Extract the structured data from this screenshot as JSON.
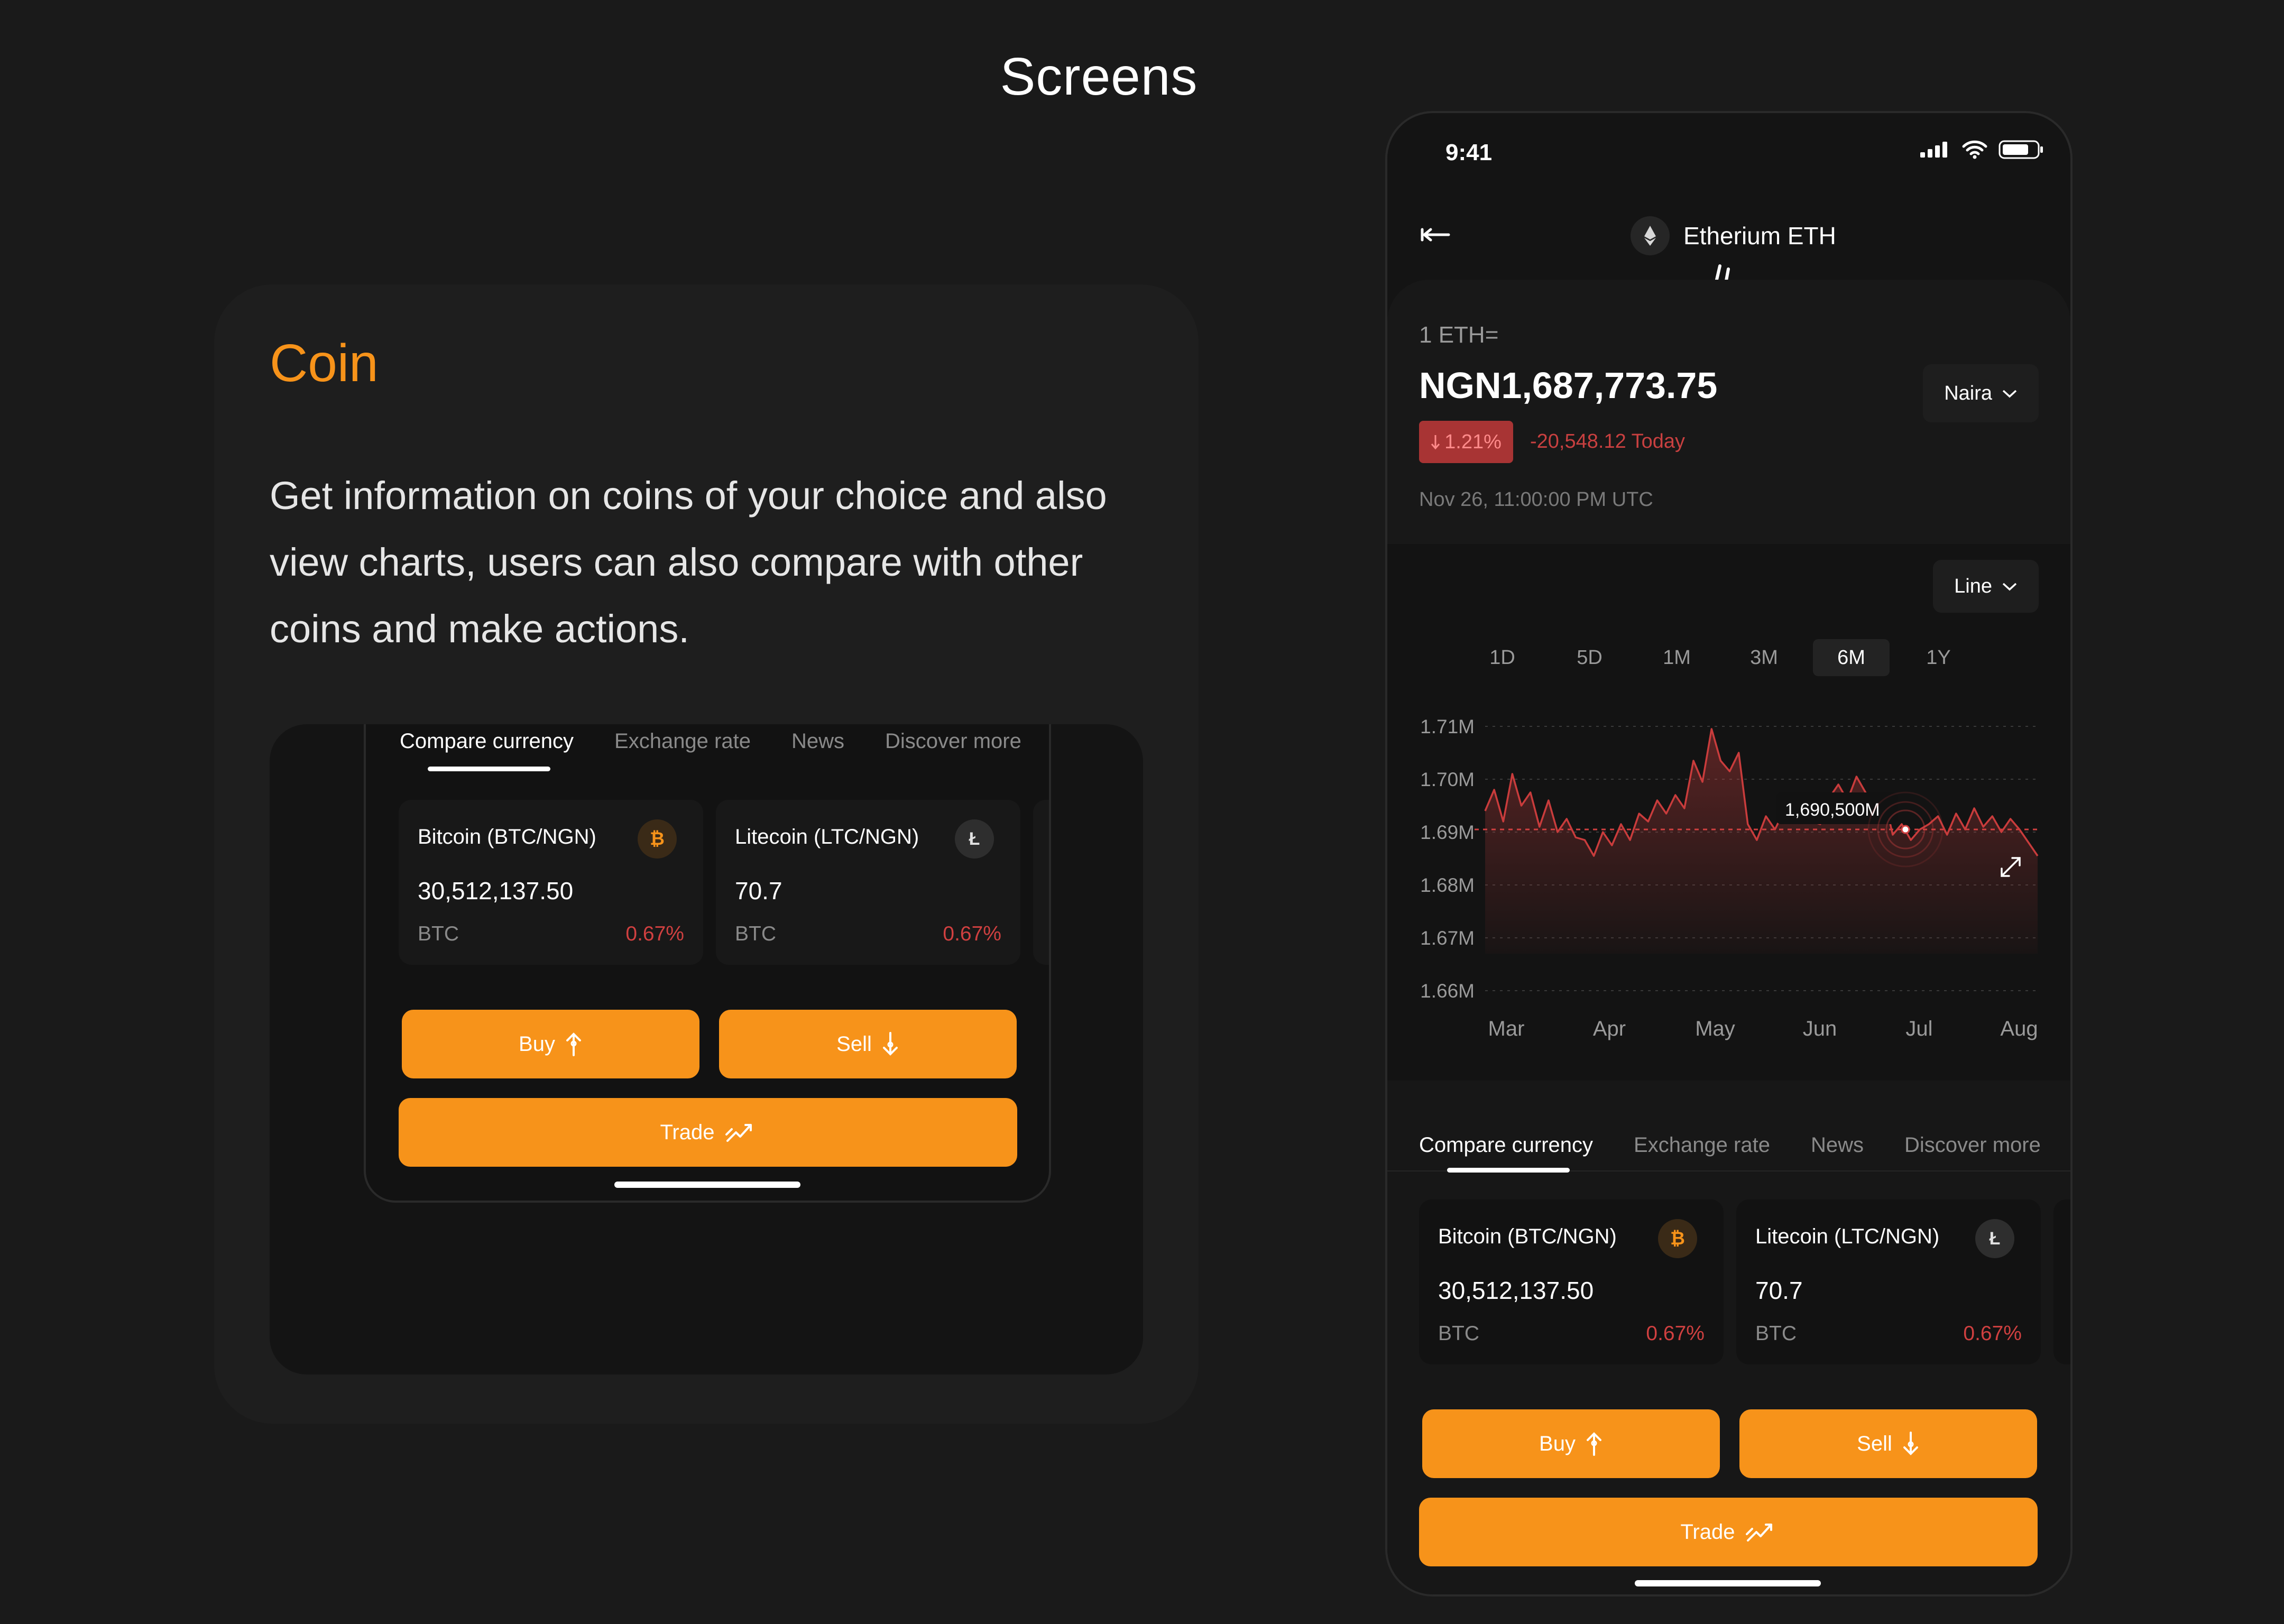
{
  "page": {
    "title": "Screens"
  },
  "coin_card": {
    "heading": "Coin",
    "description": "Get information on coins of your choice and also view charts, users can also compare with other coins and make actions."
  },
  "compare": {
    "tabs": [
      {
        "label": "Compare currency",
        "active": true
      },
      {
        "label": "Exchange rate",
        "active": false
      },
      {
        "label": "News",
        "active": false
      },
      {
        "label": "Discover more",
        "active": false
      }
    ],
    "cards": [
      {
        "name": "Bitcoin (BTC/NGN)",
        "value": "30,512,137.50",
        "symbol": "BTC",
        "change": "0.67%",
        "icon": "bitcoin-icon",
        "glyph": "₿"
      },
      {
        "name": "Litecoin (LTC/NGN)",
        "value": "70.7",
        "symbol": "BTC",
        "change": "0.67%",
        "icon": "litecoin-icon",
        "glyph": "Ł"
      }
    ]
  },
  "actions": {
    "buy": "Buy",
    "sell": "Sell",
    "trade": "Trade"
  },
  "phone": {
    "status_time": "9:41",
    "asset_name": "Etherium ETH",
    "unit_label": "1 ETH=",
    "price": "NGN1,687,773.75",
    "currency_select": "Naira",
    "change_pct": "1.21%",
    "change_today": "-20,548.12 Today",
    "timestamp": "Nov 26, 11:00:00 PM UTC",
    "chart_type_select": "Line",
    "ranges": [
      "1D",
      "5D",
      "1M",
      "3M",
      "6M",
      "1Y"
    ],
    "active_range": "6M"
  },
  "colors": {
    "accent": "#f7931a",
    "negative": "#d04040",
    "background": "#1a1a1a"
  },
  "chart_data": {
    "type": "line",
    "y_ticks": [
      "1.71M",
      "1.70M",
      "1.69M",
      "1.68M",
      "1.67M",
      "1.66M"
    ],
    "x_ticks": [
      "Mar",
      "Apr",
      "May",
      "Jun",
      "Jul",
      "Aug"
    ],
    "ylim": [
      1660000,
      1710000
    ],
    "grid": true,
    "reference_value": 1690500,
    "tooltip_label": "1,690,500M",
    "series": [
      {
        "values": [
          1694000,
          1698000,
          1692000,
          1701000,
          1695000,
          1697500,
          1691000,
          1696000,
          1690000,
          1692500,
          1689000,
          1688500,
          1685500,
          1690000,
          1687500,
          1691500,
          1688500,
          1693500,
          1692000,
          1696000,
          1693500,
          1697000,
          1694500,
          1703500,
          1699500,
          1709500,
          1703500,
          1701500,
          1705000,
          1691500,
          1688500,
          1693000,
          1690500,
          1694000,
          1692000,
          1694500,
          1692000,
          1691500,
          1696500,
          1699000,
          1696000,
          1700500,
          1697500,
          1694000,
          1697000,
          1689500,
          1691500,
          1688500,
          1690500,
          1691500,
          1693000,
          1689500,
          1693500,
          1690500,
          1694500,
          1691000,
          1693000,
          1690000,
          1692500,
          1690500,
          1688000,
          1685500
        ],
        "color": "#d04040"
      }
    ]
  }
}
